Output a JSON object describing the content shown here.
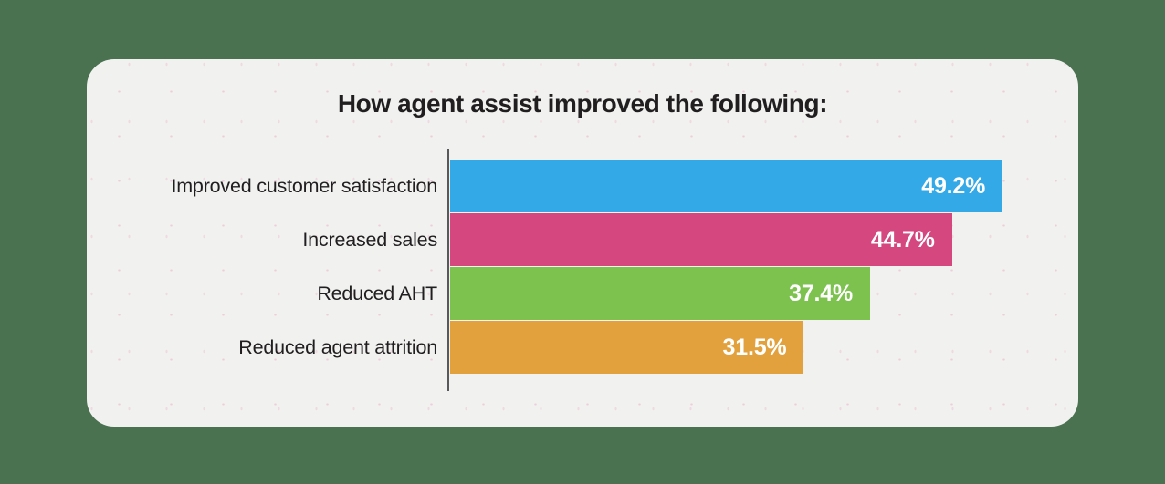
{
  "page": {
    "background_color": "#4a7150",
    "card_background_color": "#f1f2f0",
    "axis_line_color": "#59595b",
    "text_color": "#211e1f",
    "value_text_color": "#ffffff"
  },
  "title": "How agent assist improved the following:",
  "chart_data": {
    "type": "bar",
    "orientation": "horizontal",
    "title": "How agent assist improved the following:",
    "categories": [
      "Improved customer satisfaction",
      "Increased sales",
      "Reduced AHT",
      "Reduced agent attrition"
    ],
    "values": [
      49.2,
      44.7,
      37.4,
      31.5
    ],
    "value_labels": [
      "49.2%",
      "44.7%",
      "37.4%",
      "31.5%"
    ],
    "colors": [
      "#33a9e8",
      "#d4487f",
      "#7dc24f",
      "#e2a13c"
    ],
    "xlabel": "",
    "ylabel": "",
    "xlim": [
      0,
      50
    ],
    "grid": false,
    "legend": false,
    "value_label_position": "inside-end"
  }
}
